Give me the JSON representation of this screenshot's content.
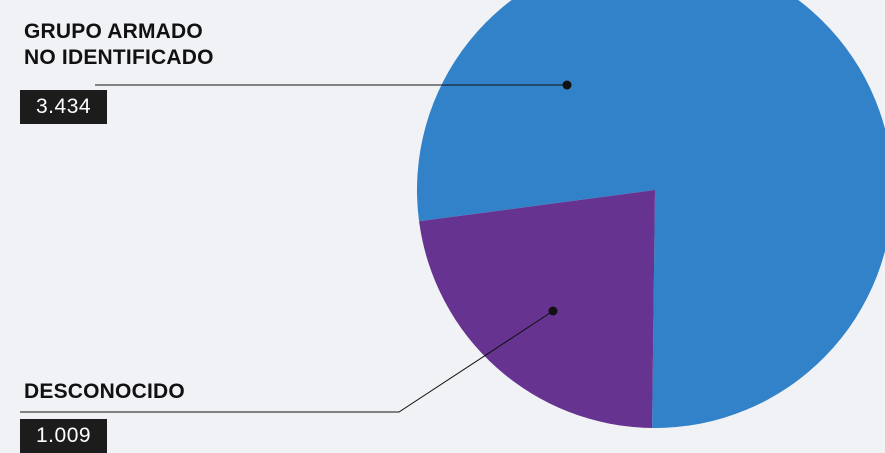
{
  "chart_data": {
    "type": "pie",
    "slices": [
      {
        "label": [
          "GRUPO ARMADO",
          "NO IDENTIFICADO"
        ],
        "value": 3434,
        "value_text": "3.434",
        "color": "#3182c8"
      },
      {
        "label": [
          "DESCONOCIDO"
        ],
        "value": 1009,
        "value_text": "1.009",
        "color": "#663390"
      }
    ]
  }
}
